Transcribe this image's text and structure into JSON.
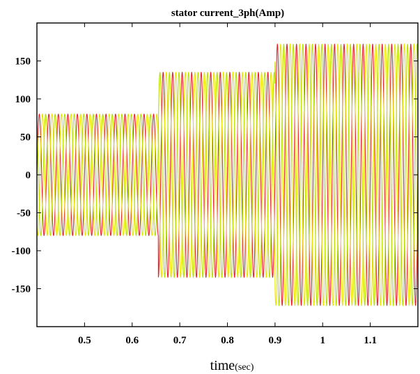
{
  "chart_data": {
    "type": "line",
    "title": "stator current_3ph(Amp)",
    "xlabel": "time",
    "xlabel_unit": "(sec)",
    "ylabel": "",
    "xlim": [
      0.4,
      1.2
    ],
    "ylim": [
      -200,
      200
    ],
    "xticks": [
      0.5,
      0.6,
      0.7,
      0.8,
      0.9,
      1.0,
      1.1
    ],
    "xtick_labels": [
      "0.5",
      "0.6",
      "0.7",
      "0.8",
      "0.9",
      "1",
      "1.1"
    ],
    "yticks": [
      150,
      100,
      50,
      0,
      -50,
      -100,
      -150
    ],
    "ytick_labels": [
      "150",
      "100",
      "50",
      "0",
      "-50",
      "-100",
      "-150"
    ],
    "grid": false,
    "frequency_hz": 50,
    "amplitude_segments": [
      {
        "t_start": 0.4,
        "t_end": 0.655,
        "amplitude": 80
      },
      {
        "t_start": 0.655,
        "t_end": 0.9,
        "amplitude": 135
      },
      {
        "t_start": 0.9,
        "t_end": 1.2,
        "amplitude": 172
      }
    ],
    "series": [
      {
        "phase_deg": 0,
        "color": "#e8232f"
      },
      {
        "phase_deg": -120,
        "color": "#e8e600"
      },
      {
        "phase_deg": 120,
        "color": "#b8e000"
      }
    ]
  }
}
